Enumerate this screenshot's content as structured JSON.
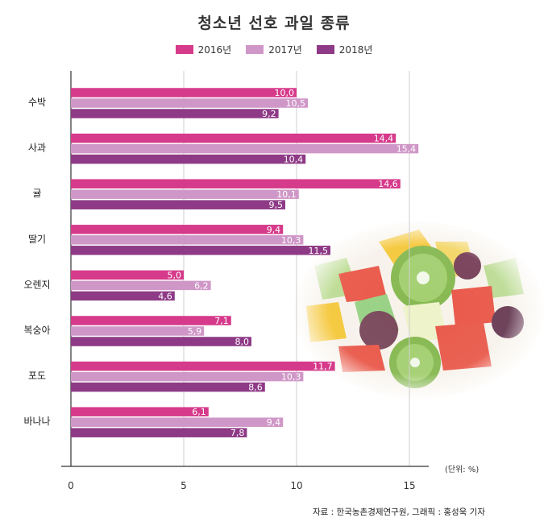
{
  "title": "청소년 선호 과일 종류",
  "unit_label": "(단위: %)",
  "source": "자료 : 한국농촌경제연구원, 그래픽 : 홍성욱 기자",
  "legend": [
    {
      "label": "2016년",
      "color": "#d63a8a"
    },
    {
      "label": "2017년",
      "color": "#cf97c7"
    },
    {
      "label": "2018년",
      "color": "#8e3a86"
    }
  ],
  "decoration": "fruit-salad-image",
  "chart_data": {
    "type": "bar",
    "orientation": "horizontal",
    "title": "청소년 선호 과일 종류",
    "xlim": [
      0,
      15
    ],
    "x_ticks": [
      0,
      5,
      10,
      15
    ],
    "grid": true,
    "legend_position": "top-center",
    "categories": [
      "수박",
      "사과",
      "귤",
      "딸기",
      "오렌지",
      "복숭아",
      "포도",
      "바나나"
    ],
    "series": [
      {
        "name": "2016년",
        "color": "#d63a8a",
        "values": [
          10.0,
          14.4,
          14.6,
          9.4,
          5.0,
          7.1,
          11.7,
          6.1
        ],
        "labels": [
          "10,0",
          "14,4",
          "14,6",
          "9,4",
          "5,0",
          "7,1",
          "11,7",
          "6,1"
        ]
      },
      {
        "name": "2017년",
        "color": "#cf97c7",
        "values": [
          10.5,
          15.4,
          10.1,
          10.3,
          6.2,
          5.9,
          10.3,
          9.4
        ],
        "labels": [
          "10,5",
          "15,4",
          "10,1",
          "10,3",
          "6,2",
          "5,9",
          "10,3",
          "9,4"
        ]
      },
      {
        "name": "2018년",
        "color": "#8e3a86",
        "values": [
          9.2,
          10.4,
          9.5,
          11.5,
          4.6,
          8.0,
          8.6,
          7.8
        ],
        "labels": [
          "9,2",
          "10,4",
          "9,5",
          "11,5",
          "4,6",
          "8,0",
          "8,6",
          "7,8"
        ]
      }
    ]
  }
}
